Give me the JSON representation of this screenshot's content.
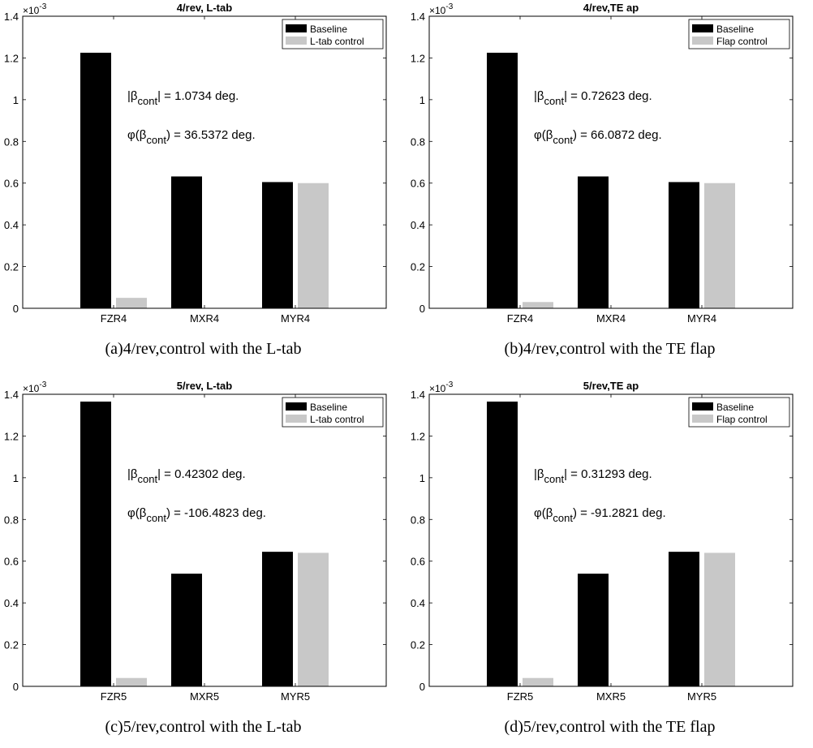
{
  "figure": {
    "captions": [
      "(a)4/rev,control with the L-tab",
      "(b)4/rev,control with the TE flap",
      "(c)5/rev,control with the L-tab",
      "(d)5/rev,control with the TE flap"
    ]
  },
  "chart_data": [
    {
      "type": "bar",
      "title": "4/rev, L-tab",
      "categories": [
        "FZR4",
        "MXR4",
        "MYR4"
      ],
      "series": [
        {
          "name": "Baseline",
          "values": [
            1.225,
            0.632,
            0.605
          ]
        },
        {
          "name": "L-tab control",
          "values": [
            0.05,
            0.0,
            0.6
          ]
        }
      ],
      "ylim": [
        0,
        1.4
      ],
      "yticks": [
        "0",
        "0.2",
        "0.4",
        "0.6",
        "0.8",
        "1",
        "1.2",
        "1.4"
      ],
      "y_multiplier": "×10",
      "y_exponent": "-3",
      "legend_position": "top-right",
      "annotations": {
        "magnitude": {
          "prefix": "|β",
          "sub": "cont",
          "suffix": "| = 1.0734 deg."
        },
        "phase": {
          "prefix": "φ(β",
          "sub": "cont",
          "suffix": ") = 36.5372 deg."
        }
      },
      "colors": {
        "baseline": "#000000",
        "control": "#c8c8c8"
      }
    },
    {
      "type": "bar",
      "title": "4/rev,TE   ap",
      "categories": [
        "FZR4",
        "MXR4",
        "MYR4"
      ],
      "series": [
        {
          "name": "Baseline",
          "values": [
            1.225,
            0.632,
            0.605
          ]
        },
        {
          "name": "Flap control",
          "values": [
            0.03,
            0.0,
            0.6
          ]
        }
      ],
      "ylim": [
        0,
        1.4
      ],
      "yticks": [
        "0",
        "0.2",
        "0.4",
        "0.6",
        "0.8",
        "1",
        "1.2",
        "1.4"
      ],
      "y_multiplier": "×10",
      "y_exponent": "-3",
      "legend_position": "top-right",
      "annotations": {
        "magnitude": {
          "prefix": "|β",
          "sub": "cont",
          "suffix": "| = 0.72623 deg."
        },
        "phase": {
          "prefix": "φ(β",
          "sub": "cont",
          "suffix": ") = 66.0872 deg."
        }
      },
      "colors": {
        "baseline": "#000000",
        "control": "#c8c8c8"
      }
    },
    {
      "type": "bar",
      "title": "5/rev, L-tab",
      "categories": [
        "FZR5",
        "MXR5",
        "MYR5"
      ],
      "series": [
        {
          "name": "Baseline",
          "values": [
            1.365,
            0.54,
            0.645
          ]
        },
        {
          "name": "L-tab control",
          "values": [
            0.04,
            0.0,
            0.64
          ]
        }
      ],
      "ylim": [
        0,
        1.4
      ],
      "yticks": [
        "0",
        "0.2",
        "0.4",
        "0.6",
        "0.8",
        "1",
        "1.2",
        "1.4"
      ],
      "y_multiplier": "×10",
      "y_exponent": "-3",
      "legend_position": "top-right",
      "annotations": {
        "magnitude": {
          "prefix": "|β",
          "sub": "cont",
          "suffix": "| = 0.42302 deg."
        },
        "phase": {
          "prefix": "φ(β",
          "sub": "cont",
          "suffix": ") = -106.4823 deg."
        }
      },
      "colors": {
        "baseline": "#000000",
        "control": "#c8c8c8"
      }
    },
    {
      "type": "bar",
      "title": "5/rev,TE   ap",
      "categories": [
        "FZR5",
        "MXR5",
        "MYR5"
      ],
      "series": [
        {
          "name": "Baseline",
          "values": [
            1.365,
            0.54,
            0.645
          ]
        },
        {
          "name": "Flap control",
          "values": [
            0.04,
            0.0,
            0.64
          ]
        }
      ],
      "ylim": [
        0,
        1.4
      ],
      "yticks": [
        "0",
        "0.2",
        "0.4",
        "0.6",
        "0.8",
        "1",
        "1.2",
        "1.4"
      ],
      "y_multiplier": "×10",
      "y_exponent": "-3",
      "legend_position": "top-right",
      "annotations": {
        "magnitude": {
          "prefix": "|β",
          "sub": "cont",
          "suffix": "| = 0.31293 deg."
        },
        "phase": {
          "prefix": "φ(β",
          "sub": "cont",
          "suffix": ") = -91.2821 deg."
        }
      },
      "colors": {
        "baseline": "#000000",
        "control": "#c8c8c8"
      }
    }
  ]
}
